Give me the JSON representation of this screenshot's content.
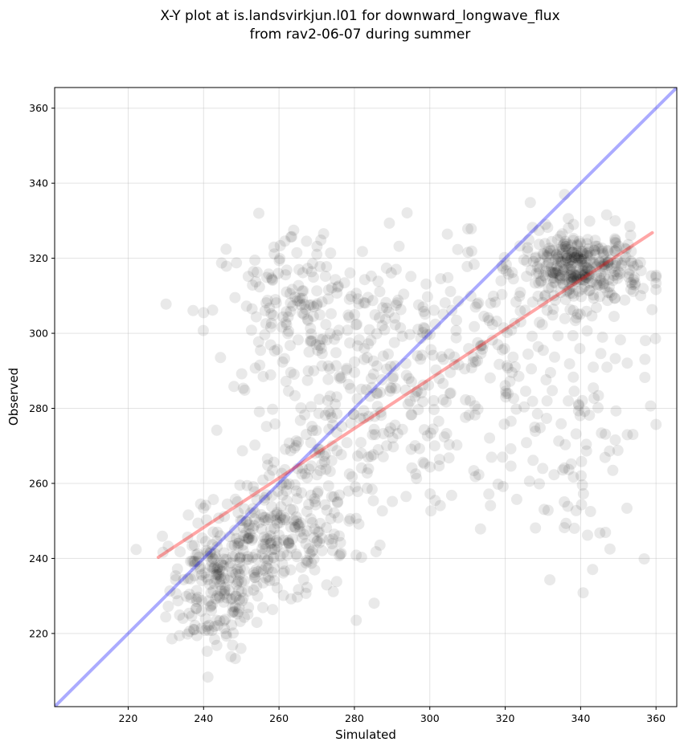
{
  "chart_data": {
    "type": "scatter",
    "title_line1": "X-Y plot at is.landsvirkjun.l01 for downward_longwave_flux",
    "title_line2": "from rav2-06-07 during summer",
    "xlabel": "Simulated",
    "ylabel": "Observed",
    "xlim": [
      200.5,
      365.5
    ],
    "ylim": [
      200.5,
      365.5
    ],
    "xticks": [
      220,
      240,
      260,
      280,
      300,
      320,
      340,
      360
    ],
    "yticks": [
      220,
      240,
      260,
      280,
      300,
      320,
      340,
      360
    ],
    "xtick_labels": [
      "220",
      "240",
      "260",
      "280",
      "300",
      "320",
      "340",
      "360"
    ],
    "ytick_labels": [
      "220",
      "240",
      "260",
      "280",
      "300",
      "320",
      "340",
      "360"
    ],
    "grid": true,
    "point_color": "#000000",
    "reference_line": {
      "from": [
        200.5,
        200.5
      ],
      "to": [
        365.5,
        365.5
      ],
      "color": "#0000ff"
    },
    "fit_line": {
      "from": [
        228,
        240.3
      ],
      "to": [
        359,
        326.8
      ],
      "color": "#ff0000"
    },
    "clusters": [
      {
        "cx": 243,
        "cy": 232,
        "sx": 6,
        "sy": 9,
        "count": 180
      },
      {
        "cx": 258,
        "cy": 244,
        "sx": 10,
        "sy": 8,
        "count": 220
      },
      {
        "cx": 272,
        "cy": 262,
        "sx": 10,
        "sy": 12,
        "count": 120
      },
      {
        "cx": 265,
        "cy": 305,
        "sx": 12,
        "sy": 12,
        "count": 170
      },
      {
        "cx": 285,
        "cy": 290,
        "sx": 14,
        "sy": 18,
        "count": 160
      },
      {
        "cx": 300,
        "cy": 285,
        "sx": 12,
        "sy": 20,
        "count": 70
      },
      {
        "cx": 318,
        "cy": 295,
        "sx": 10,
        "sy": 15,
        "count": 90
      },
      {
        "cx": 340,
        "cy": 317,
        "sx": 8,
        "sy": 5,
        "count": 330
      },
      {
        "cx": 340,
        "cy": 280,
        "sx": 9,
        "sy": 22,
        "count": 110
      }
    ]
  }
}
